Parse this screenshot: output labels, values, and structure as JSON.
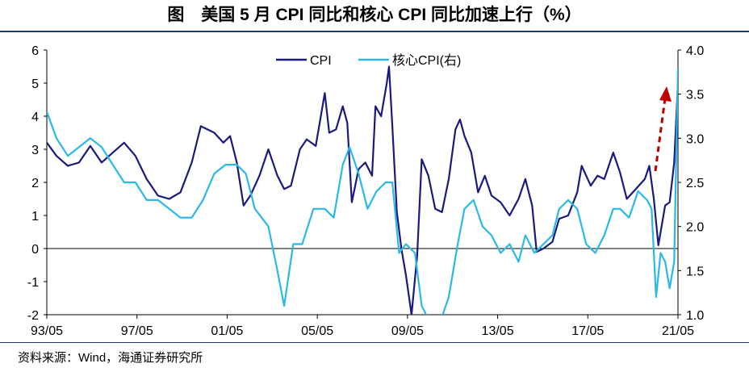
{
  "title": "图　美国 5 月 CPI 同比和核心 CPI 同比加速上行（%）",
  "source": "资料来源：Wind，海通证券研究所",
  "colors": {
    "cpi": "#1a1a7e",
    "core": "#2bb8e8",
    "arrow": "#c00000",
    "frame": "#1f3a66"
  },
  "chart_data": {
    "type": "line",
    "title": "美国 5 月 CPI 同比和核心 CPI 同比加速上行（%）",
    "xlabel": "",
    "ylabel": "",
    "ylabel_right": "",
    "x_ticks": [
      "93/05",
      "97/05",
      "01/05",
      "05/05",
      "09/05",
      "13/05",
      "17/05",
      "21/05"
    ],
    "ylim": [
      -2,
      6
    ],
    "y_ticks": [
      "6",
      "5",
      "4",
      "3",
      "2",
      "1",
      "0",
      "-1",
      "-2"
    ],
    "y2lim": [
      1.0,
      4.0
    ],
    "y2_ticks": [
      "4.0",
      "3.5",
      "3.0",
      "2.5",
      "2.0",
      "1.5",
      "1.0"
    ],
    "legend_position": "top-center",
    "series": [
      {
        "name": "CPI",
        "axis": "left",
        "x": [
          1993.37,
          1993.8,
          1994.3,
          1994.8,
          1995.3,
          1995.8,
          1996.3,
          1996.8,
          1997.3,
          1997.8,
          1998.3,
          1998.8,
          1999.3,
          1999.8,
          2000.2,
          2000.5,
          2000.8,
          2001.2,
          2001.5,
          2001.8,
          2002.1,
          2002.4,
          2002.8,
          2003.2,
          2003.6,
          2003.9,
          2004.2,
          2004.6,
          2004.9,
          2005.3,
          2005.7,
          2005.9,
          2006.2,
          2006.5,
          2006.7,
          2006.9,
          2007.2,
          2007.5,
          2007.8,
          2007.95,
          2008.2,
          2008.45,
          2008.55,
          2008.7,
          2008.9,
          2009.1,
          2009.3,
          2009.55,
          2009.8,
          2010.0,
          2010.3,
          2010.6,
          2010.9,
          2011.2,
          2011.5,
          2011.7,
          2011.9,
          2012.2,
          2012.5,
          2012.8,
          2013.1,
          2013.5,
          2013.9,
          2014.3,
          2014.6,
          2014.9,
          2015.1,
          2015.4,
          2015.8,
          2016.1,
          2016.5,
          2016.9,
          2017.1,
          2017.5,
          2017.8,
          2018.1,
          2018.5,
          2018.8,
          2019.1,
          2019.5,
          2019.9,
          2020.1,
          2020.3,
          2020.5,
          2020.8,
          2021.0,
          2021.2,
          2021.37
        ],
        "y": [
          3.2,
          2.8,
          2.5,
          2.6,
          3.1,
          2.6,
          2.9,
          3.2,
          2.8,
          2.1,
          1.6,
          1.5,
          1.7,
          2.6,
          3.7,
          3.6,
          3.5,
          3.2,
          3.4,
          2.6,
          1.3,
          1.6,
          2.2,
          3.0,
          2.2,
          1.8,
          1.9,
          3.0,
          3.3,
          3.1,
          4.7,
          3.5,
          3.6,
          4.3,
          3.8,
          1.4,
          2.4,
          2.6,
          2.2,
          4.3,
          4.0,
          5.0,
          5.5,
          3.7,
          1.1,
          0.0,
          -0.8,
          -2.0,
          -0.2,
          2.7,
          2.2,
          1.2,
          1.1,
          2.1,
          3.6,
          3.9,
          3.4,
          2.9,
          1.7,
          2.2,
          1.6,
          1.4,
          1.0,
          1.5,
          2.1,
          1.3,
          -0.1,
          0.0,
          0.2,
          0.9,
          1.0,
          1.7,
          2.5,
          1.9,
          2.2,
          2.1,
          2.9,
          2.3,
          1.5,
          1.8,
          2.1,
          2.5,
          1.5,
          0.1,
          1.3,
          1.4,
          2.6,
          5.0
        ]
      },
      {
        "name": "核心CPI(右)",
        "axis": "right",
        "x": [
          1993.37,
          1993.8,
          1994.3,
          1994.8,
          1995.3,
          1995.8,
          1996.3,
          1996.8,
          1997.3,
          1997.8,
          1998.3,
          1998.8,
          1999.3,
          1999.8,
          2000.3,
          2000.8,
          2001.3,
          2001.8,
          2002.2,
          2002.6,
          2002.9,
          2003.2,
          2003.6,
          2003.9,
          2004.3,
          2004.7,
          2005.2,
          2005.7,
          2006.1,
          2006.5,
          2006.8,
          2007.2,
          2007.6,
          2008.0,
          2008.4,
          2008.7,
          2009.0,
          2009.3,
          2009.7,
          2010.0,
          2010.4,
          2010.8,
          2011.2,
          2011.6,
          2011.9,
          2012.3,
          2012.7,
          2013.1,
          2013.5,
          2013.9,
          2014.3,
          2014.6,
          2015.0,
          2015.4,
          2015.8,
          2016.1,
          2016.5,
          2016.9,
          2017.3,
          2017.7,
          2018.1,
          2018.5,
          2018.8,
          2019.2,
          2019.6,
          2020.0,
          2020.2,
          2020.4,
          2020.6,
          2020.8,
          2021.0,
          2021.2,
          2021.37
        ],
        "y": [
          3.3,
          3.0,
          2.8,
          2.9,
          3.0,
          2.9,
          2.7,
          2.5,
          2.5,
          2.3,
          2.3,
          2.2,
          2.1,
          2.1,
          2.3,
          2.6,
          2.7,
          2.7,
          2.6,
          2.2,
          2.1,
          2.0,
          1.5,
          1.1,
          1.8,
          1.8,
          2.2,
          2.2,
          2.1,
          2.7,
          2.9,
          2.6,
          2.2,
          2.4,
          2.5,
          2.5,
          1.7,
          1.8,
          1.7,
          1.1,
          0.9,
          0.9,
          1.2,
          1.8,
          2.2,
          2.3,
          2.0,
          1.9,
          1.7,
          1.8,
          1.6,
          1.9,
          1.7,
          1.8,
          1.9,
          2.2,
          2.3,
          2.2,
          1.8,
          1.7,
          1.9,
          2.2,
          2.2,
          2.1,
          2.4,
          2.3,
          2.2,
          1.2,
          1.7,
          1.6,
          1.3,
          1.6,
          3.8
        ]
      }
    ],
    "annotations": [
      {
        "type": "arrow",
        "direction": "up",
        "near": "21/05",
        "color": "#c00000"
      }
    ]
  }
}
